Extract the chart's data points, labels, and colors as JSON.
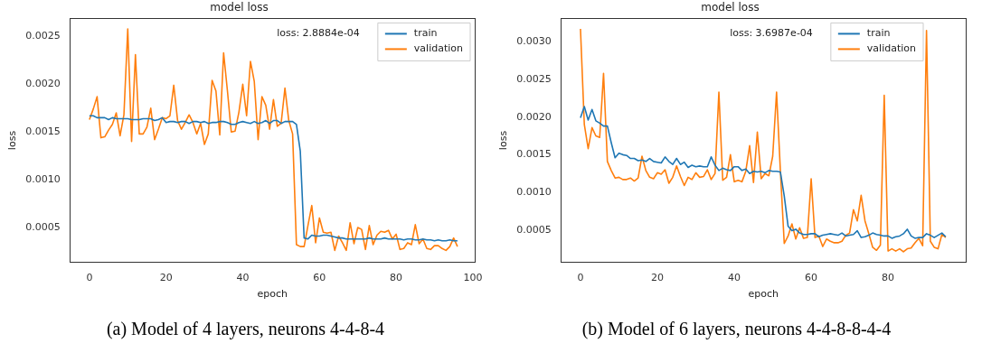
{
  "chart_data": [
    {
      "type": "line",
      "title": "model loss",
      "xlabel": "epoch",
      "ylabel": "loss",
      "annotations": [
        "loss: 2.8884e-04",
        "(a) Model of 4 layers, neurons 4-4-8-4"
      ],
      "x": [
        0,
        1,
        2,
        3,
        4,
        5,
        6,
        7,
        8,
        9,
        10,
        11,
        12,
        13,
        14,
        15,
        16,
        17,
        18,
        19,
        20,
        21,
        22,
        23,
        24,
        25,
        26,
        27,
        28,
        29,
        30,
        31,
        32,
        33,
        34,
        35,
        36,
        37,
        38,
        39,
        40,
        41,
        42,
        43,
        44,
        45,
        46,
        47,
        48,
        49,
        50,
        51,
        52,
        53,
        54,
        55,
        56,
        57,
        58,
        59,
        60,
        61,
        62,
        63,
        64,
        65,
        66,
        67,
        68,
        69,
        70,
        71,
        72,
        73,
        74,
        75,
        76,
        77,
        78,
        79,
        80,
        81,
        82,
        83,
        84,
        85,
        86,
        87,
        88,
        89,
        90,
        91,
        92,
        93,
        94,
        95,
        96
      ],
      "series": [
        {
          "name": "train",
          "color": "#1f77b4",
          "values": [
            0.00167,
            0.00167,
            0.00165,
            0.00165,
            0.00165,
            0.00163,
            0.00165,
            0.00164,
            0.00164,
            0.00164,
            0.00164,
            0.00163,
            0.00163,
            0.00163,
            0.00164,
            0.00164,
            0.00164,
            0.00162,
            0.00163,
            0.00165,
            0.0016,
            0.00161,
            0.00161,
            0.0016,
            0.00161,
            0.00161,
            0.00159,
            0.00161,
            0.00161,
            0.0016,
            0.00161,
            0.00159,
            0.0016,
            0.0016,
            0.00161,
            0.00161,
            0.0016,
            0.00158,
            0.00158,
            0.0016,
            0.00161,
            0.0016,
            0.00159,
            0.00161,
            0.00159,
            0.0016,
            0.00162,
            0.00159,
            0.00162,
            0.00162,
            0.00159,
            0.00161,
            0.00161,
            0.00161,
            0.00158,
            0.0013,
            0.00039,
            0.00038,
            0.00042,
            0.00041,
            0.00041,
            0.00042,
            0.00042,
            0.00041,
            0.0004,
            0.00039,
            0.00039,
            0.00038,
            0.00038,
            0.00038,
            0.00038,
            0.00038,
            0.00038,
            0.00039,
            0.00038,
            0.00038,
            0.00038,
            0.00039,
            0.00038,
            0.00038,
            0.00038,
            0.00038,
            0.00037,
            0.00038,
            0.00038,
            0.00037,
            0.00037,
            0.00038,
            0.00037,
            0.00037,
            0.00036,
            0.00037,
            0.00036,
            0.00036,
            0.00037,
            0.00036,
            0.00036
          ]
        },
        {
          "name": "validation",
          "color": "#ff7f0e",
          "values": [
            0.00163,
            0.00174,
            0.00187,
            0.00144,
            0.00145,
            0.00152,
            0.00158,
            0.0017,
            0.00146,
            0.00168,
            0.00258,
            0.0014,
            0.00231,
            0.00148,
            0.00148,
            0.00155,
            0.00175,
            0.00142,
            0.00153,
            0.00165,
            0.00164,
            0.00167,
            0.00199,
            0.00162,
            0.00153,
            0.0016,
            0.00168,
            0.0016,
            0.00148,
            0.00159,
            0.00137,
            0.00148,
            0.00204,
            0.00193,
            0.00147,
            0.00233,
            0.00193,
            0.0015,
            0.00151,
            0.00171,
            0.002,
            0.00167,
            0.00224,
            0.00203,
            0.00142,
            0.00187,
            0.00178,
            0.00153,
            0.00184,
            0.00156,
            0.00159,
            0.00196,
            0.00162,
            0.00148,
            0.00032,
            0.0003,
            0.0003,
            0.00052,
            0.00073,
            0.00034,
            0.0006,
            0.00045,
            0.00044,
            0.00045,
            0.00026,
            0.00041,
            0.00034,
            0.00026,
            0.00055,
            0.00033,
            0.0005,
            0.00048,
            0.00027,
            0.00052,
            0.00032,
            0.00042,
            0.00046,
            0.00045,
            0.00047,
            0.00038,
            0.00043,
            0.00027,
            0.00028,
            0.00034,
            0.00032,
            0.00053,
            0.00033,
            0.00038,
            0.00028,
            0.00027,
            0.00031,
            0.00031,
            0.00028,
            0.00026,
            0.0003,
            0.00039,
            0.0003
          ]
        }
      ],
      "xlim": [
        -5,
        100.5
      ],
      "xticks": [
        0,
        20,
        40,
        60,
        80,
        100
      ],
      "ylim": [
        0.000135,
        0.00269
      ],
      "yticks": [
        0.0005,
        {
          "value": 0.001,
          "label": "0.0010"
        },
        0.0015,
        {
          "value": 0.002,
          "label": "0.0020"
        },
        0.0025
      ],
      "grid": false,
      "legend": "top right",
      "marker": "none",
      "line_style": "solid"
    },
    {
      "type": "line",
      "title": "model loss",
      "xlabel": "epoch",
      "ylabel": "loss",
      "annotations": [
        "loss: 3.6987e-04",
        "(b) Model of 6 layers, neurons 4-4-8-8-4-4"
      ],
      "x": [
        0,
        1,
        2,
        3,
        4,
        5,
        6,
        7,
        8,
        9,
        10,
        11,
        12,
        13,
        14,
        15,
        16,
        17,
        18,
        19,
        20,
        21,
        22,
        23,
        24,
        25,
        26,
        27,
        28,
        29,
        30,
        31,
        32,
        33,
        34,
        35,
        36,
        37,
        38,
        39,
        40,
        41,
        42,
        43,
        44,
        45,
        46,
        47,
        48,
        49,
        50,
        51,
        52,
        53,
        54,
        55,
        56,
        57,
        58,
        59,
        60,
        61,
        62,
        63,
        64,
        65,
        66,
        67,
        68,
        69,
        70,
        71,
        72,
        73,
        74,
        75,
        76,
        77,
        78,
        79,
        80,
        81,
        82,
        83,
        84,
        85,
        86,
        87,
        88,
        89,
        90,
        91,
        92,
        93,
        94,
        95
      ],
      "series": [
        {
          "name": "train",
          "color": "#1f77b4",
          "values": [
            0.00199,
            0.00214,
            0.00196,
            0.0021,
            0.00195,
            0.00192,
            0.00188,
            0.00188,
            0.00166,
            0.00146,
            0.00152,
            0.0015,
            0.00149,
            0.00145,
            0.00145,
            0.00142,
            0.00143,
            0.00141,
            0.00145,
            0.00141,
            0.0014,
            0.00139,
            0.00147,
            0.00141,
            0.00137,
            0.00145,
            0.00137,
            0.0014,
            0.00133,
            0.00136,
            0.00134,
            0.00135,
            0.00134,
            0.00134,
            0.00147,
            0.00136,
            0.00129,
            0.00132,
            0.0013,
            0.00129,
            0.00134,
            0.00134,
            0.00129,
            0.00131,
            0.00125,
            0.00128,
            0.00127,
            0.00128,
            0.00126,
            0.00129,
            0.00128,
            0.00128,
            0.00127,
            0.00095,
            0.00055,
            0.00049,
            0.00051,
            0.00046,
            0.00044,
            0.00044,
            0.00045,
            0.00045,
            0.00041,
            0.00043,
            0.00044,
            0.00045,
            0.00044,
            0.00043,
            0.00046,
            0.00042,
            0.00043,
            0.00044,
            0.00049,
            0.0004,
            0.00041,
            0.00043,
            0.00046,
            0.00044,
            0.00043,
            0.00042,
            0.00042,
            0.00039,
            0.00041,
            0.00042,
            0.00045,
            0.00051,
            0.00042,
            0.00039,
            0.0004,
            0.0004,
            0.00045,
            0.00043,
            0.0004,
            0.00043,
            0.00046,
            0.00041
          ]
        },
        {
          "name": "validation",
          "color": "#ff7f0e",
          "values": [
            0.00317,
            0.0019,
            0.00158,
            0.00186,
            0.00175,
            0.00173,
            0.00258,
            0.00141,
            0.00129,
            0.00119,
            0.0012,
            0.00117,
            0.00117,
            0.00119,
            0.00115,
            0.00119,
            0.00148,
            0.00129,
            0.0012,
            0.00118,
            0.00126,
            0.00124,
            0.0013,
            0.00112,
            0.0012,
            0.00135,
            0.00121,
            0.00109,
            0.0012,
            0.00117,
            0.00126,
            0.0012,
            0.00121,
            0.0013,
            0.00117,
            0.00125,
            0.00233,
            0.00116,
            0.0012,
            0.0015,
            0.00114,
            0.00116,
            0.00114,
            0.00128,
            0.00162,
            0.00113,
            0.0018,
            0.00118,
            0.00125,
            0.00122,
            0.00148,
            0.00233,
            0.00128,
            0.00032,
            0.00042,
            0.00058,
            0.00038,
            0.00053,
            0.00039,
            0.0004,
            0.00118,
            0.0004,
            0.00042,
            0.00028,
            0.00038,
            0.00035,
            0.00033,
            0.00033,
            0.00035,
            0.00043,
            0.00046,
            0.00077,
            0.00062,
            0.00096,
            0.00062,
            0.00045,
            0.00027,
            0.00023,
            0.0003,
            0.00229,
            0.00022,
            0.00025,
            0.00022,
            0.00025,
            0.00021,
            0.00025,
            0.00026,
            0.00033,
            0.00039,
            0.00029,
            0.00315,
            0.00035,
            0.00027,
            0.00025,
            0.00044,
            0.0004
          ]
        }
      ],
      "xlim": [
        -5,
        100.2
      ],
      "xticks": [
        0,
        20,
        40,
        60,
        80
      ],
      "ylim": [
        7e-05,
        0.00331
      ],
      "yticks": [
        0.0005,
        {
          "value": 0.001,
          "label": "0.0010"
        },
        0.0015,
        {
          "value": 0.002,
          "label": "0.0020"
        },
        0.0025,
        {
          "value": 0.003,
          "label": "0.0030"
        }
      ],
      "grid": false,
      "legend": "top right",
      "marker": "none",
      "line_style": "solid"
    }
  ]
}
